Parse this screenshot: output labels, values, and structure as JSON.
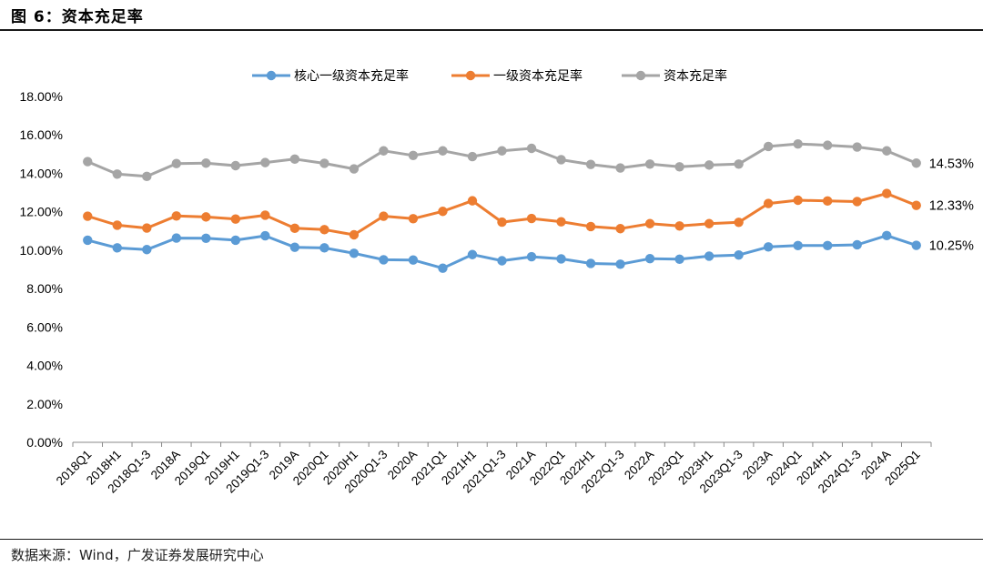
{
  "header": {
    "title": "图 6：资本充足率"
  },
  "footer": {
    "source": "数据来源：Wind，广发证券发展研究中心"
  },
  "chart_data": {
    "type": "line",
    "title": "",
    "xlabel": "",
    "ylabel": "",
    "ylim": [
      0,
      18
    ],
    "y_ticks": [
      "0.00%",
      "2.00%",
      "4.00%",
      "6.00%",
      "8.00%",
      "10.00%",
      "12.00%",
      "14.00%",
      "16.00%",
      "18.00%"
    ],
    "grid": false,
    "legend_position": "top-center",
    "categories": [
      "2018Q1",
      "2018H1",
      "2018Q1-3",
      "2018A",
      "2019Q1",
      "2019H1",
      "2019Q1-3",
      "2019A",
      "2020Q1",
      "2020H1",
      "2020Q1-3",
      "2020A",
      "2021Q1",
      "2021H1",
      "2021Q1-3",
      "2021A",
      "2022Q1",
      "2022H1",
      "2022Q1-3",
      "2022A",
      "2023Q1",
      "2023H1",
      "2023Q1-3",
      "2023A",
      "2024Q1",
      "2024H1",
      "2024Q1-3",
      "2024A",
      "2025Q1"
    ],
    "series": [
      {
        "name": "核心一级资本充足率",
        "color": "#5b9bd5",
        "end_label": "10.25%",
        "values": [
          10.52,
          10.12,
          10.03,
          10.63,
          10.62,
          10.52,
          10.75,
          10.15,
          10.12,
          9.84,
          9.5,
          9.49,
          9.06,
          9.77,
          9.45,
          9.66,
          9.55,
          9.31,
          9.27,
          9.56,
          9.53,
          9.69,
          9.75,
          10.17,
          10.24,
          10.24,
          10.28,
          10.76,
          10.25
        ]
      },
      {
        "name": "一级资本充足率",
        "color": "#ed7d31",
        "end_label": "12.33%",
        "values": [
          11.77,
          11.3,
          11.15,
          11.78,
          11.73,
          11.62,
          11.82,
          11.14,
          11.07,
          10.8,
          11.77,
          11.64,
          12.02,
          12.57,
          11.46,
          11.65,
          11.48,
          11.23,
          11.12,
          11.38,
          11.26,
          11.38,
          11.45,
          12.43,
          12.6,
          12.56,
          12.53,
          12.95,
          12.33
        ]
      },
      {
        "name": "资本充足率",
        "color": "#a5a5a5",
        "end_label": "14.53%",
        "values": [
          14.61,
          13.96,
          13.84,
          14.51,
          14.53,
          14.4,
          14.56,
          14.74,
          14.52,
          14.23,
          15.17,
          14.93,
          15.17,
          14.87,
          15.17,
          15.3,
          14.71,
          14.46,
          14.28,
          14.48,
          14.34,
          14.43,
          14.48,
          15.4,
          15.53,
          15.46,
          15.37,
          15.17,
          14.53
        ]
      }
    ]
  }
}
